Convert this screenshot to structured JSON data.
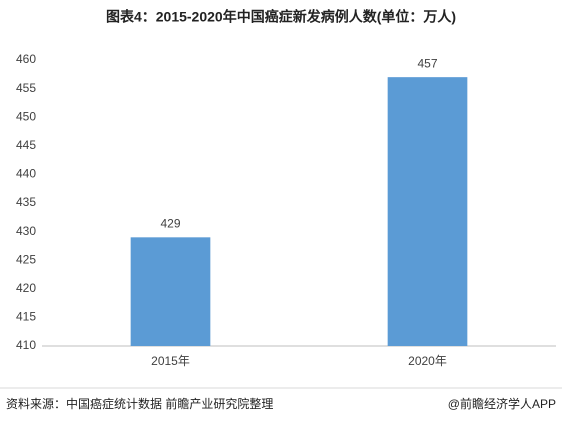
{
  "chart_data": {
    "type": "bar",
    "title": "图表4：2015-2020年中国癌症新发病例人数(单位：万人)",
    "categories": [
      "2015年",
      "2020年"
    ],
    "values": [
      429,
      457
    ],
    "color": "#5b9bd5",
    "ylim": [
      410,
      460
    ],
    "yticks": [
      410,
      415,
      420,
      425,
      430,
      435,
      440,
      445,
      450,
      455,
      460
    ],
    "grid": false,
    "source": "资料来源：中国癌症统计数据 前瞻产业研究院整理",
    "credit": "@前瞻经济学人APP"
  }
}
